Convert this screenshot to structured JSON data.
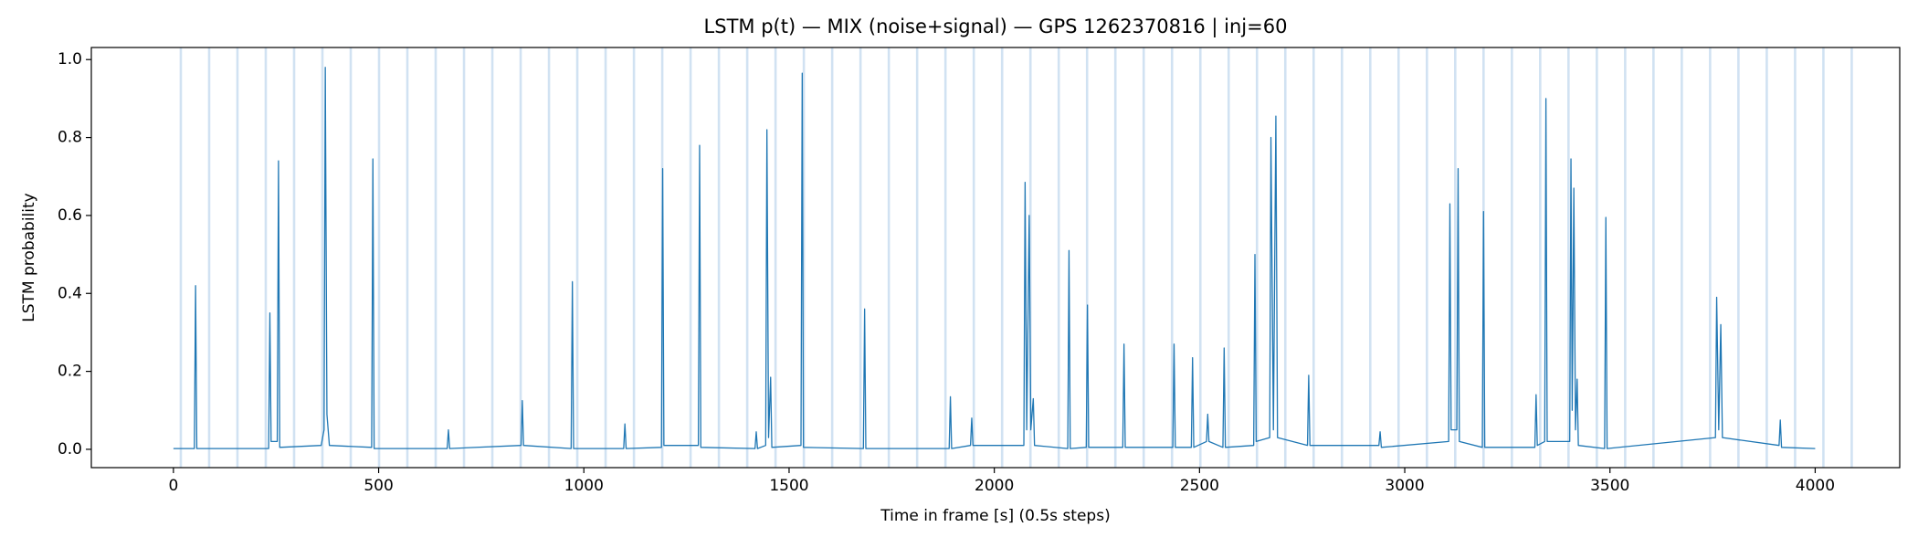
{
  "chart_data": {
    "type": "line",
    "title": "LSTM p(t) — MIX (noise+signal) — GPS 1262370816 | inj=60",
    "xlabel": "Time in frame [s] (0.5s steps)",
    "ylabel": "LSTM probability",
    "color": "#1f77b4",
    "injection_color": "#c6dbef",
    "injection_x": [
      18,
      87,
      156,
      225,
      294,
      363,
      432,
      501,
      570,
      639,
      708,
      777,
      846,
      915,
      984,
      1053,
      1122,
      1191,
      1260,
      1329,
      1398,
      1467,
      1536,
      1605,
      1674,
      1743,
      1812,
      1881,
      1950,
      2019,
      2088,
      2157,
      2226,
      2295,
      2364,
      2433,
      2502,
      2571,
      2640,
      2709,
      2778,
      2847,
      2916,
      2985,
      3054,
      3123,
      3192,
      3261,
      3330,
      3399,
      3468,
      3537,
      3606,
      3675,
      3744,
      3813,
      3882,
      3951,
      4020,
      4089
    ],
    "x": [
      0,
      51,
      54,
      57,
      232,
      235,
      238,
      253,
      256,
      259,
      360,
      367,
      370,
      374,
      380,
      483,
      486,
      489,
      667,
      670,
      673,
      847,
      850,
      853,
      969,
      972,
      975,
      1097,
      1100,
      1103,
      1189,
      1192,
      1195,
      1279,
      1282,
      1285,
      1417,
      1420,
      1423,
      1443,
      1446,
      1450,
      1455,
      1458,
      1529,
      1532,
      1535,
      1681,
      1684,
      1687,
      1890,
      1893,
      1896,
      1942,
      1945,
      1948,
      2072,
      2075,
      2079,
      2085,
      2089,
      2095,
      2098,
      2179,
      2182,
      2185,
      2224,
      2227,
      2230,
      2313,
      2316,
      2319,
      2435,
      2438,
      2441,
      2480,
      2483,
      2486,
      2517,
      2520,
      2523,
      2557,
      2560,
      2563,
      2632,
      2635,
      2638,
      2671,
      2674,
      2680,
      2686,
      2690,
      2763,
      2766,
      2769,
      2937,
      2940,
      2943,
      3107,
      3110,
      3113,
      3127,
      3130,
      3133,
      3189,
      3192,
      3195,
      3317,
      3320,
      3323,
      3341,
      3344,
      3347,
      3402,
      3405,
      3408,
      3412,
      3416,
      3420,
      3423,
      3487,
      3490,
      3493,
      3757,
      3760,
      3765,
      3770,
      3774,
      3912,
      3915,
      3918,
      4000
    ],
    "values": [
      0.002,
      0.002,
      0.42,
      0.002,
      0.002,
      0.35,
      0.02,
      0.02,
      0.74,
      0.005,
      0.01,
      0.05,
      0.98,
      0.09,
      0.01,
      0.005,
      0.745,
      0.002,
      0.002,
      0.05,
      0.002,
      0.01,
      0.125,
      0.01,
      0.002,
      0.43,
      0.002,
      0.002,
      0.065,
      0.002,
      0.005,
      0.72,
      0.01,
      0.01,
      0.78,
      0.005,
      0.002,
      0.045,
      0.002,
      0.01,
      0.82,
      0.03,
      0.185,
      0.005,
      0.01,
      0.965,
      0.005,
      0.002,
      0.36,
      0.002,
      0.002,
      0.135,
      0.002,
      0.01,
      0.08,
      0.01,
      0.01,
      0.685,
      0.05,
      0.6,
      0.05,
      0.13,
      0.01,
      0.002,
      0.51,
      0.002,
      0.005,
      0.37,
      0.005,
      0.005,
      0.27,
      0.005,
      0.005,
      0.27,
      0.005,
      0.005,
      0.235,
      0.005,
      0.02,
      0.09,
      0.02,
      0.005,
      0.26,
      0.005,
      0.01,
      0.5,
      0.02,
      0.03,
      0.8,
      0.05,
      0.855,
      0.03,
      0.01,
      0.19,
      0.01,
      0.01,
      0.045,
      0.005,
      0.02,
      0.63,
      0.05,
      0.05,
      0.72,
      0.02,
      0.005,
      0.61,
      0.005,
      0.005,
      0.14,
      0.01,
      0.02,
      0.9,
      0.02,
      0.02,
      0.745,
      0.1,
      0.67,
      0.05,
      0.18,
      0.01,
      0.002,
      0.595,
      0.002,
      0.03,
      0.39,
      0.05,
      0.32,
      0.03,
      0.01,
      0.075,
      0.005,
      0.002
    ],
    "xlim": [
      -200,
      4206
    ],
    "ylim": [
      -0.047,
      1.031
    ],
    "xticks": [
      0,
      500,
      1000,
      1500,
      2000,
      2500,
      3000,
      3500,
      4000
    ],
    "yticks": [
      {
        "value": 0,
        "label": "0.0"
      },
      {
        "value": 0.2,
        "label": "0.2"
      },
      {
        "value": 0.4,
        "label": "0.4"
      },
      {
        "value": 0.6,
        "label": "0.6"
      },
      {
        "value": 0.8,
        "label": "0.8"
      },
      {
        "value": 1,
        "label": "1.0"
      }
    ]
  }
}
